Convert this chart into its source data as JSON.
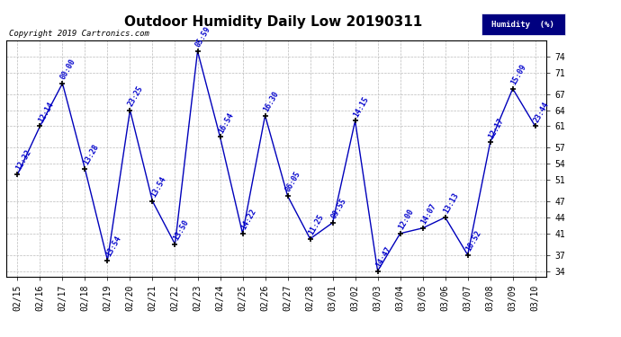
{
  "title": "Outdoor Humidity Daily Low 20190311",
  "copyright": "Copyright 2019 Cartronics.com",
  "legend_label": "Humidity  (%)",
  "x_labels": [
    "02/15",
    "02/16",
    "02/17",
    "02/18",
    "02/19",
    "02/20",
    "02/21",
    "02/22",
    "02/23",
    "02/24",
    "02/25",
    "02/26",
    "02/27",
    "02/28",
    "03/01",
    "03/02",
    "03/03",
    "03/04",
    "03/05",
    "03/06",
    "03/07",
    "03/08",
    "03/09",
    "03/10"
  ],
  "y_values": [
    52,
    61,
    69,
    53,
    36,
    64,
    47,
    39,
    75,
    59,
    41,
    63,
    48,
    40,
    43,
    62,
    34,
    41,
    42,
    44,
    37,
    58,
    68,
    61
  ],
  "point_labels": [
    "12:32",
    "12:14",
    "00:00",
    "13:28",
    "13:54",
    "23:25",
    "13:54",
    "13:50",
    "05:59",
    "16:54",
    "14:22",
    "16:30",
    "06:05",
    "11:25",
    "09:55",
    "14:15",
    "14:47",
    "12:00",
    "14:07",
    "13:13",
    "10:52",
    "12:17",
    "15:09",
    "23:44"
  ],
  "line_color": "#0000bb",
  "marker_color": "#000000",
  "label_color": "#0000cc",
  "background_color": "#ffffff",
  "grid_color": "#bbbbbb",
  "ylim": [
    33,
    77
  ],
  "yticks": [
    34,
    37,
    41,
    44,
    47,
    51,
    54,
    57,
    61,
    64,
    67,
    71,
    74
  ],
  "title_fontsize": 11,
  "label_fontsize": 6,
  "tick_fontsize": 7,
  "copyright_fontsize": 6.5,
  "legend_bg": "#000080",
  "legend_text_color": "#ffffff"
}
